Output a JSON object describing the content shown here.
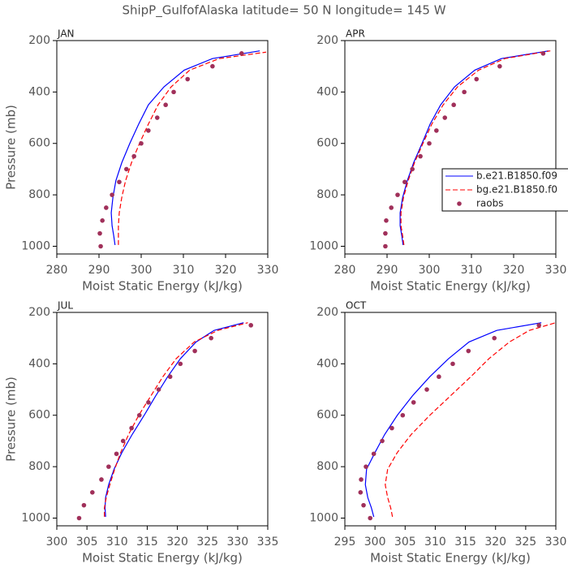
{
  "title": "ShipP_GulfofAlaska  latitude= 50 N longitude= 145 W",
  "chart_data": [
    {
      "type": "line",
      "title": "JAN",
      "xlabel": "Moist Static Energy (kJ/kg)",
      "ylabel": "Pressure (mb)",
      "xlim": [
        280,
        330
      ],
      "xticks": [
        280,
        290,
        300,
        310,
        320,
        330
      ],
      "ylim": [
        1030,
        200
      ],
      "yticks": [
        200,
        400,
        600,
        800,
        1000
      ],
      "series": [
        {
          "color": "#0000ff",
          "style": "solid",
          "x": [
            293.8,
            293.5,
            293.1,
            292.9,
            293.3,
            294.0,
            295.4,
            297.3,
            299.4,
            301.7,
            305.4,
            310.2,
            316.9,
            328.1
          ],
          "y": [
            995,
            960,
            920,
            870,
            810,
            745,
            675,
            600,
            525,
            450,
            380,
            315,
            270,
            240
          ]
        },
        {
          "color": "#ff0000",
          "style": "dashed",
          "x": [
            294.6,
            294.6,
            294.6,
            294.8,
            295.4,
            296.3,
            297.7,
            299.6,
            301.7,
            304.0,
            307.1,
            311.5,
            318.5,
            329.6
          ],
          "y": [
            995,
            960,
            920,
            870,
            810,
            745,
            675,
            600,
            525,
            450,
            380,
            315,
            270,
            245
          ]
        },
        {
          "color": "#a0305a",
          "style": "dots",
          "x": [
            290.4,
            290.2,
            290.8,
            291.7,
            293.1,
            294.8,
            296.5,
            298.3,
            300.0,
            301.7,
            303.8,
            305.8,
            307.7,
            311.0,
            316.9,
            323.8
          ],
          "y": [
            1000,
            950,
            900,
            850,
            800,
            750,
            700,
            650,
            600,
            550,
            500,
            450,
            400,
            350,
            300,
            250
          ]
        }
      ]
    },
    {
      "type": "line",
      "title": "APR",
      "xlabel": "Moist Static Energy (kJ/kg)",
      "xlim": [
        280,
        330
      ],
      "xticks": [
        280,
        290,
        300,
        310,
        320,
        330
      ],
      "ylim": [
        1030,
        200
      ],
      "yticks": [
        200,
        400,
        600,
        800,
        1000
      ],
      "legend": "right",
      "series": [
        {
          "name": "b.e21.B1850.f09",
          "color": "#0000ff",
          "style": "solid",
          "x": [
            293.8,
            293.5,
            293.1,
            293.1,
            293.7,
            294.8,
            296.3,
            298.3,
            300.2,
            302.7,
            306.0,
            310.8,
            317.1,
            328.3
          ],
          "y": [
            995,
            960,
            920,
            870,
            810,
            745,
            675,
            600,
            525,
            450,
            380,
            315,
            270,
            240
          ]
        },
        {
          "name": "bg.e21.B1850.f0",
          "color": "#ff0000",
          "style": "dashed",
          "x": [
            294.0,
            293.7,
            293.3,
            293.3,
            293.9,
            295.0,
            296.5,
            298.5,
            300.6,
            303.3,
            306.7,
            311.7,
            317.9,
            328.7
          ],
          "y": [
            995,
            960,
            920,
            870,
            810,
            745,
            675,
            600,
            525,
            450,
            380,
            315,
            270,
            240
          ]
        },
        {
          "name": "raobs",
          "color": "#a0305a",
          "style": "dots",
          "x": [
            289.6,
            289.6,
            289.8,
            291.0,
            292.5,
            294.2,
            296.0,
            297.9,
            300.0,
            301.7,
            303.7,
            305.8,
            308.3,
            311.2,
            316.7,
            327.0
          ],
          "y": [
            1000,
            950,
            900,
            850,
            800,
            750,
            700,
            650,
            600,
            550,
            500,
            450,
            400,
            350,
            300,
            250
          ]
        }
      ]
    },
    {
      "type": "line",
      "title": "JUL",
      "xlabel": "Moist Static Energy (kJ/kg)",
      "ylabel": "Pressure (mb)",
      "xlim": [
        300,
        335
      ],
      "xticks": [
        300,
        305,
        310,
        315,
        320,
        325,
        330,
        335
      ],
      "ylim": [
        1030,
        200
      ],
      "yticks": [
        200,
        400,
        600,
        800,
        1000
      ],
      "series": [
        {
          "color": "#0000ff",
          "style": "solid",
          "x": [
            308.1,
            308.0,
            308.1,
            308.6,
            309.5,
            310.8,
            312.5,
            314.5,
            316.4,
            318.4,
            320.5,
            323.1,
            326.1,
            331.0
          ],
          "y": [
            995,
            960,
            920,
            870,
            810,
            745,
            675,
            600,
            525,
            450,
            380,
            315,
            270,
            240
          ]
        },
        {
          "color": "#ff0000",
          "style": "dashed",
          "x": [
            307.9,
            307.9,
            308.2,
            308.8,
            309.6,
            310.6,
            311.9,
            313.6,
            315.6,
            317.6,
            319.8,
            322.8,
            326.7,
            331.7
          ],
          "y": [
            995,
            960,
            920,
            870,
            810,
            745,
            675,
            600,
            525,
            450,
            380,
            315,
            270,
            240
          ]
        },
        {
          "color": "#a0305a",
          "style": "dots",
          "x": [
            303.7,
            304.5,
            305.9,
            307.4,
            308.6,
            309.9,
            311.0,
            312.4,
            313.7,
            315.2,
            316.9,
            318.8,
            320.5,
            322.9,
            325.6,
            332.2
          ],
          "y": [
            1000,
            950,
            900,
            850,
            800,
            750,
            700,
            650,
            600,
            550,
            500,
            450,
            400,
            350,
            300,
            250
          ]
        }
      ]
    },
    {
      "type": "line",
      "title": "OCT",
      "xlabel": "Moist Static Energy (kJ/kg)",
      "xlim": [
        295,
        330
      ],
      "xticks": [
        295,
        300,
        305,
        310,
        315,
        320,
        325,
        330
      ],
      "ylim": [
        1030,
        200
      ],
      "yticks": [
        200,
        400,
        600,
        800,
        1000
      ],
      "series": [
        {
          "color": "#0000ff",
          "style": "solid",
          "x": [
            299.8,
            299.4,
            298.8,
            298.4,
            298.6,
            300.0,
            301.6,
            303.7,
            306.2,
            309.1,
            312.2,
            315.6,
            320.2,
            327.6
          ],
          "y": [
            995,
            960,
            920,
            870,
            810,
            745,
            675,
            600,
            525,
            450,
            380,
            315,
            270,
            240
          ]
        },
        {
          "color": "#ff0000",
          "style": "dashed",
          "x": [
            302.9,
            302.6,
            302.1,
            301.7,
            302.1,
            303.7,
            306.0,
            309.1,
            312.5,
            315.9,
            318.9,
            322.3,
            325.6,
            330.0
          ],
          "y": [
            995,
            960,
            920,
            870,
            810,
            745,
            675,
            600,
            525,
            450,
            380,
            315,
            270,
            240
          ]
        },
        {
          "color": "#a0305a",
          "style": "dots",
          "x": [
            299.2,
            298.1,
            297.6,
            297.7,
            298.5,
            299.8,
            301.2,
            302.8,
            304.6,
            306.4,
            308.6,
            310.6,
            312.9,
            315.5,
            319.8,
            327.2
          ],
          "y": [
            1000,
            950,
            900,
            850,
            800,
            750,
            700,
            650,
            600,
            550,
            500,
            450,
            400,
            350,
            300,
            250
          ]
        }
      ]
    }
  ]
}
